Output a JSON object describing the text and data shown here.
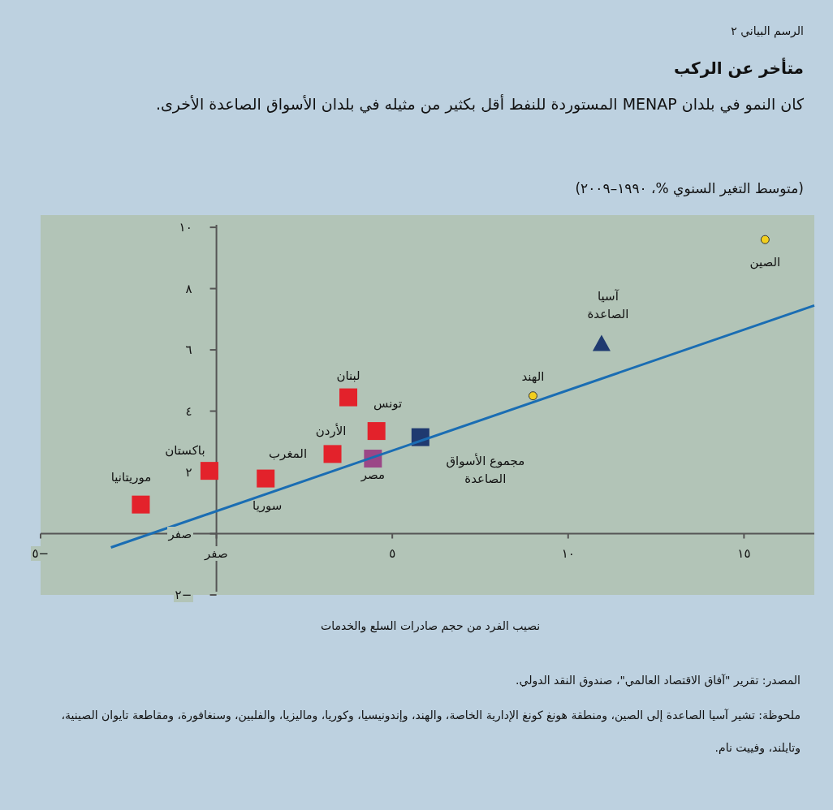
{
  "chart_data": {
    "type": "scatter",
    "title": "متأخر عن الركب",
    "subtitle": "كان النمو في بلدان MENAP المستوردة للنفط أقل بكثير من مثيله في بلدان الأسواق الصاعدة الأخرى.",
    "ylabel": "(متوسط التغير السنوي %، ١٩٩٠–٢٠٠٩)",
    "xlabel": "نصيب الفرد من حجم صادرات السلع والخدمات",
    "xlim": [
      -5,
      17
    ],
    "ylim": [
      -2,
      10.4
    ],
    "xticks": [
      {
        "value": -5,
        "label": "−٥"
      },
      {
        "value": 0,
        "label": "صفر"
      },
      {
        "value": 5,
        "label": "٥"
      },
      {
        "value": 10,
        "label": "١٠"
      },
      {
        "value": 15,
        "label": "١٥"
      }
    ],
    "yticks": [
      {
        "value": -2,
        "label": "−٢"
      },
      {
        "value": 0,
        "label": "صفر"
      },
      {
        "value": 2,
        "label": "٢"
      },
      {
        "value": 4,
        "label": "٤"
      },
      {
        "value": 6,
        "label": "٦"
      },
      {
        "value": 8,
        "label": "٨"
      },
      {
        "value": 10,
        "label": "١٠"
      }
    ],
    "series": [
      {
        "color": "#e3222b",
        "marker": "square",
        "x": [
          -2.15,
          -0.2,
          1.4,
          3.3,
          3.75,
          4.55
        ],
        "values": [
          0.95,
          2.05,
          1.8,
          2.6,
          4.45,
          3.35
        ]
      },
      {
        "color": "#9b4787",
        "marker": "square",
        "x": [
          4.45
        ],
        "values": [
          2.45
        ]
      },
      {
        "color": "#1f3a70",
        "marker": "square",
        "x": [
          5.8
        ],
        "values": [
          3.15
        ]
      },
      {
        "color": "#1f3a70",
        "marker": "triangle",
        "x": [
          10.95
        ],
        "values": [
          6.2
        ]
      },
      {
        "color": "#f2cf1d",
        "marker": "circle",
        "x": [
          9.0,
          15.6
        ],
        "values": [
          4.5,
          9.6
        ]
      },
      {
        "type": "line",
        "color": "#1a6db3",
        "x": [
          -3.0,
          17.0
        ],
        "values": [
          -0.45,
          7.45
        ]
      }
    ],
    "annotations": [
      "الرسم البياني ٢",
      {
        "text": "الصين",
        "x": 15.6,
        "y": 9.6
      },
      {
        "text": "آسيا الصاعدة",
        "x": 10.95,
        "y": 6.2
      },
      {
        "text": "الهند",
        "x": 9.0,
        "y": 4.5
      },
      {
        "text": "مجموع الأسواق الصاعدة",
        "x": 5.8,
        "y": 3.15
      },
      {
        "text": "تونس",
        "x": 4.55,
        "y": 3.35
      },
      {
        "text": "لبنان",
        "x": 3.75,
        "y": 4.45
      },
      {
        "text": "الأردن",
        "x": 3.3,
        "y": 2.6
      },
      {
        "text": "المغرب",
        "x": 3.3,
        "y": 2.6
      },
      {
        "text": "مصر",
        "x": 4.45,
        "y": 2.45
      },
      {
        "text": "باكستان",
        "x": -0.2,
        "y": 2.05
      },
      {
        "text": "سوريا",
        "x": 1.4,
        "y": 1.8
      },
      {
        "text": "موريتانيا",
        "x": -2.15,
        "y": 0.95
      },
      "المصدر: تقرير \"آفاق الاقتصاد العالمي\"، صندوق النقد الدولي.",
      "ملحوظة: تشير آسيا الصاعدة إلى الصين، ومنطقة هونغ كونغ الإدارية الخاصة، والهند، وإندونيسيا، وكوريا، وماليزيا، والفلبين، وسنغافورة، ومقاطعة تايوان الصينية، وتايلند، وفييت نام."
    ]
  }
}
